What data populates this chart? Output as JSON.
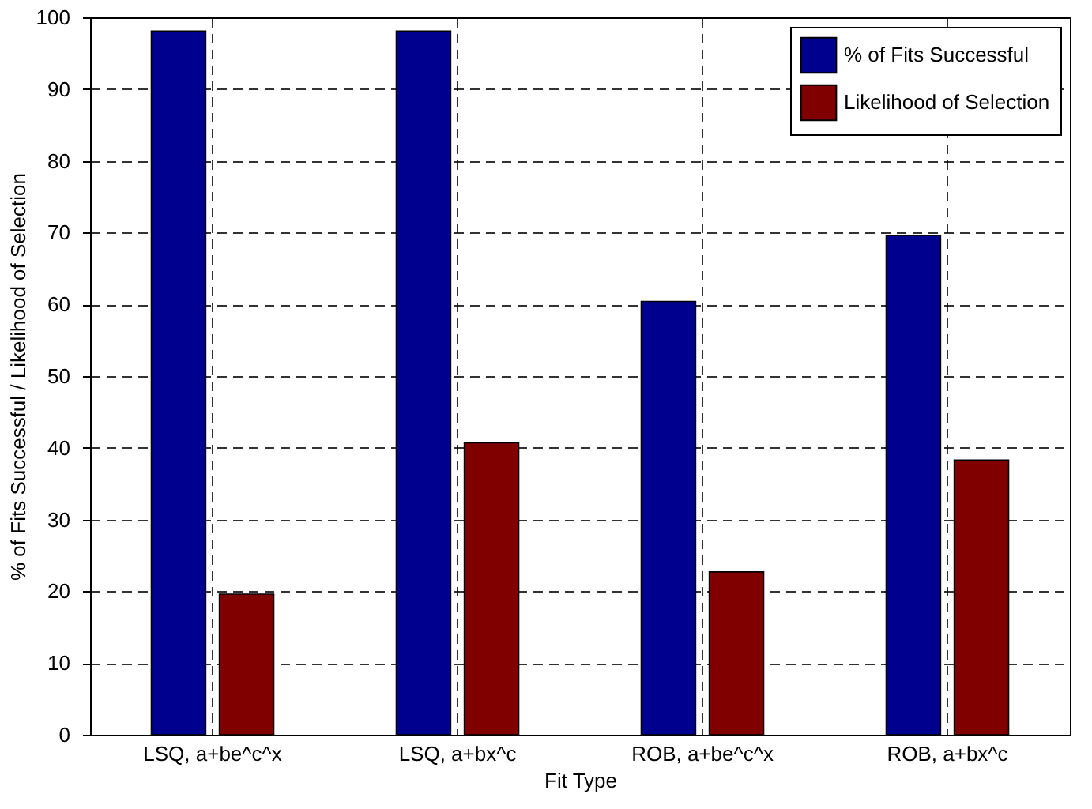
{
  "chart_data": {
    "type": "bar",
    "xlabel": "Fit Type",
    "ylabel": "% of Fits Successful / Likelihood of Selection",
    "categories": [
      "LSQ, a+be^c^x",
      "LSQ, a+bx^c",
      "ROB, a+be^c^x",
      "ROB, a+bx^c"
    ],
    "series": [
      {
        "name": "% of Fits Successful",
        "color": "#00008f",
        "values": [
          98.1,
          98.1,
          60.4,
          69.6
        ]
      },
      {
        "name": "Likelihood of Selection",
        "color": "#800000",
        "values": [
          19.6,
          40.7,
          22.7,
          38.3
        ]
      }
    ],
    "ylim": [
      0,
      100
    ],
    "yticks": [
      0,
      10,
      20,
      30,
      40,
      50,
      60,
      70,
      80,
      90,
      100
    ],
    "grid": true,
    "legend": "top right"
  }
}
